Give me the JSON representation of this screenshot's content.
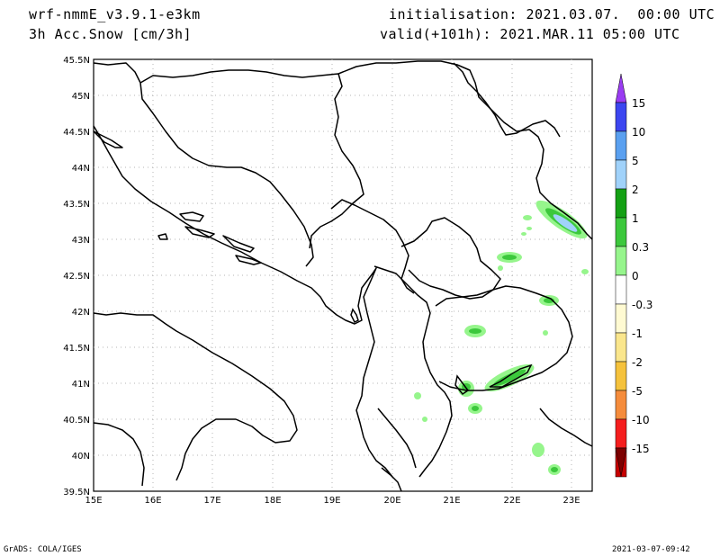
{
  "header": {
    "model": "wrf-nmmE_v3.9.1-e3km",
    "field": "3h Acc.Snow [cm/3h]",
    "init": "initialisation: 2021.03.07.  00:00 UTC",
    "valid": "valid(+101h): 2021.MAR.11 05:00 UTC"
  },
  "axes": {
    "lat_labels": [
      "45.5N",
      "45N",
      "44.5N",
      "44N",
      "43.5N",
      "43N",
      "42.5N",
      "42N",
      "41.5N",
      "41N",
      "40.5N",
      "40N",
      "39.5N"
    ],
    "lon_labels": [
      "15E",
      "16E",
      "17E",
      "18E",
      "19E",
      "20E",
      "21E",
      "22E",
      "23E"
    ]
  },
  "colorbar": {
    "labels": [
      "15",
      "10",
      "5",
      "2",
      "1",
      "0.3",
      "0",
      "-0.3",
      "-1",
      "-2",
      "-5",
      "-10",
      "-15"
    ],
    "colors": [
      "#9a3cf2",
      "#3c46f0",
      "#5aa0f0",
      "#a0d2fa",
      "#14a014",
      "#3cc83c",
      "#96f58c",
      "#ffffff",
      "#fffad2",
      "#fae68c",
      "#f5c23c",
      "#f58c3c",
      "#f51e1e",
      "#c80000",
      "#7d0000"
    ]
  },
  "footer": {
    "left": "GrADS: COLA/IGES",
    "right": "2021-03-07-09:42"
  }
}
